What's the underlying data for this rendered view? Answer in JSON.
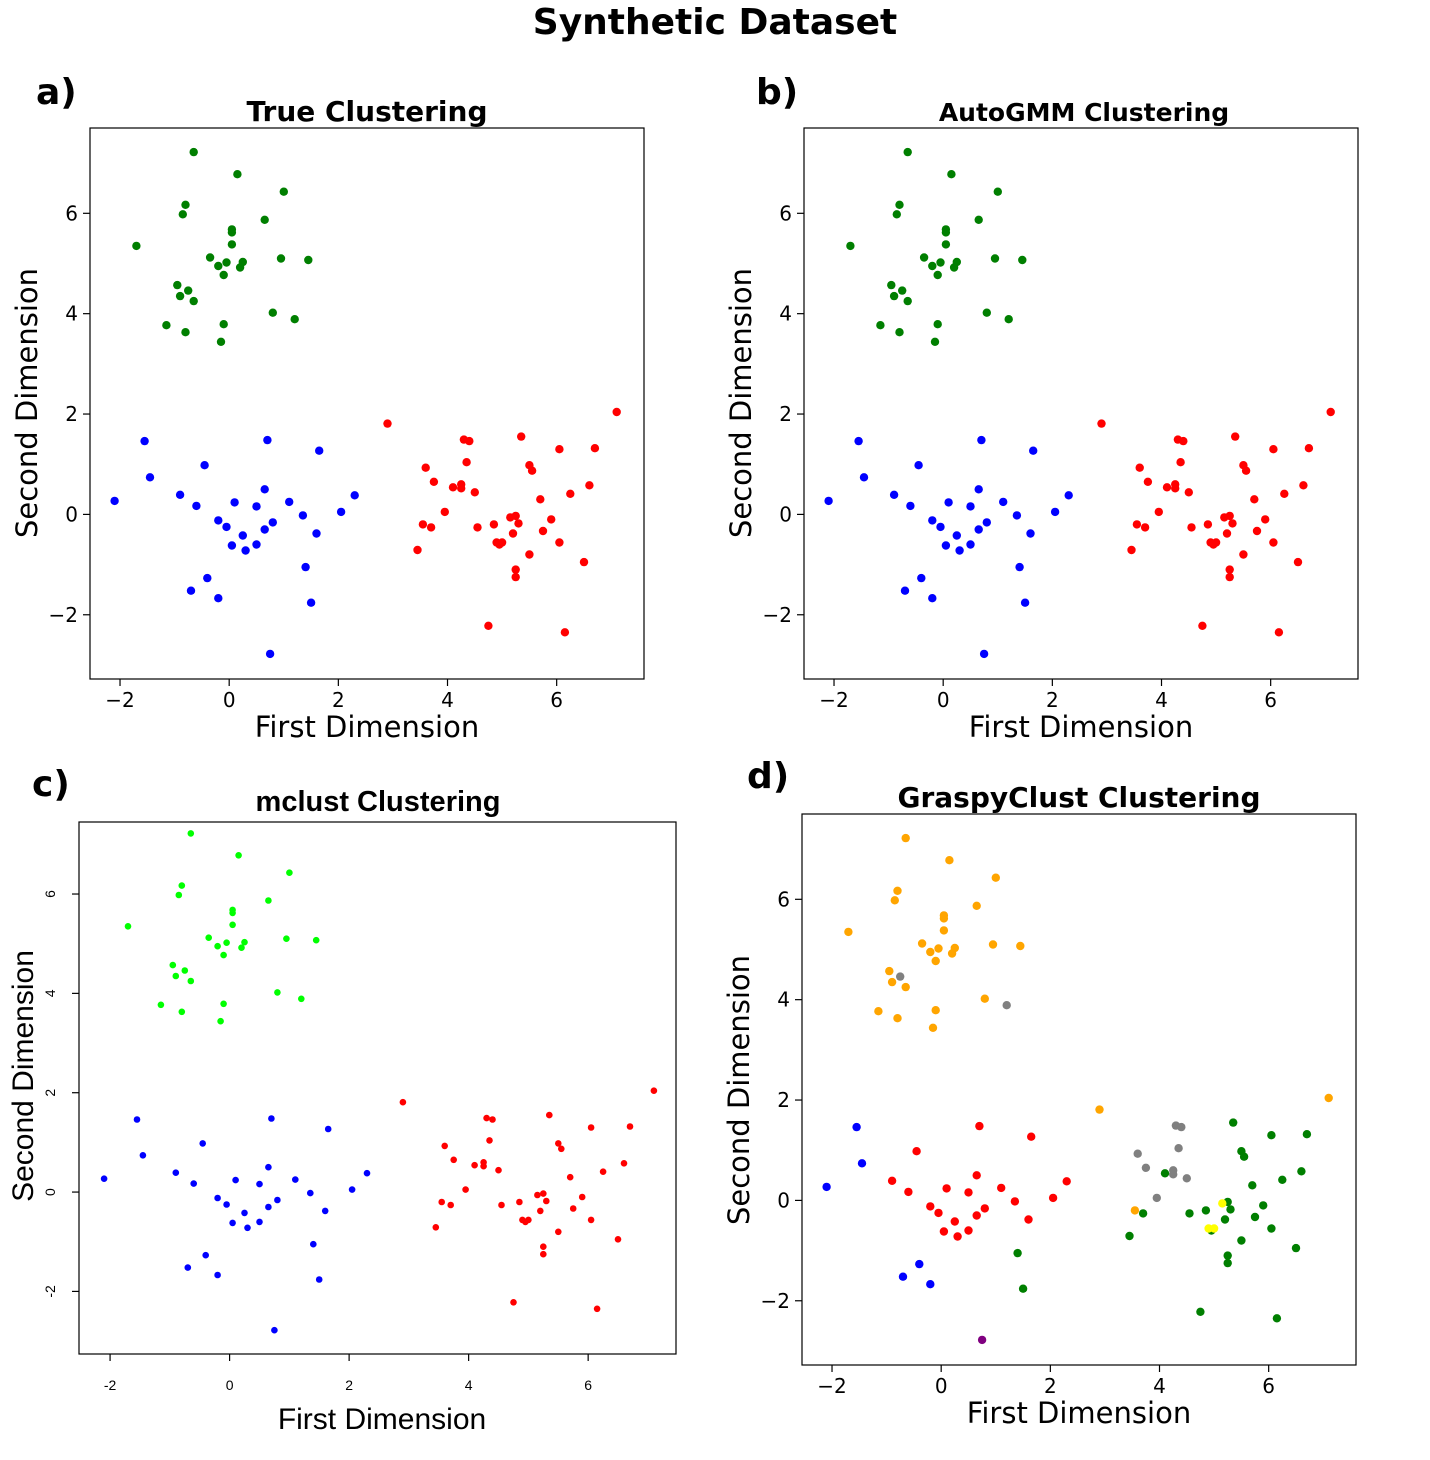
{
  "figure_title": "Synthetic Dataset",
  "colors": {
    "green": "#007f00",
    "blue": "#0000ff",
    "red": "#ff0000",
    "lime": "#00ff00",
    "orange": "#ffa500",
    "gray": "#808080",
    "yellow": "#ffff00",
    "purple": "#800080"
  },
  "chart_data": [
    {
      "type": "scatter",
      "panel_label": "a)",
      "title": "True Clustering",
      "xlabel": "First Dimension",
      "ylabel": "Second Dimension",
      "xlim": [
        -2.55,
        7.6
      ],
      "ylim": [
        -3.28,
        7.7
      ],
      "xticks": [
        -2,
        0,
        2,
        4,
        6
      ],
      "yticks": [
        -2,
        0,
        2,
        4,
        6
      ],
      "xtick_labels": [
        "−2",
        "0",
        "2",
        "4",
        "6"
      ],
      "ytick_labels": [
        "−2",
        "0",
        "2",
        "4",
        "6"
      ],
      "labels": [
        "green",
        "blue",
        "red"
      ]
    },
    {
      "type": "scatter",
      "panel_label": "b)",
      "title": "AutoGMM Clustering",
      "xlabel": "First Dimension",
      "ylabel": "Second Dimension",
      "xlim": [
        -2.55,
        7.6
      ],
      "ylim": [
        -3.28,
        7.7
      ],
      "xticks": [
        -2,
        0,
        2,
        4,
        6
      ],
      "yticks": [
        -2,
        0,
        2,
        4,
        6
      ],
      "xtick_labels": [
        "−2",
        "0",
        "2",
        "4",
        "6"
      ],
      "ytick_labels": [
        "−2",
        "0",
        "2",
        "4",
        "6"
      ],
      "labels": [
        "green",
        "blue",
        "red"
      ]
    },
    {
      "type": "scatter",
      "panel_label": "c)",
      "title": "mclust Clustering",
      "xlabel": "First Dimension",
      "ylabel": "Second Dimension",
      "xlim": [
        -2.52,
        7.47
      ],
      "ylim": [
        -3.26,
        7.45
      ],
      "xticks": [
        -2,
        0,
        2,
        4,
        6
      ],
      "yticks": [
        -2,
        0,
        2,
        4,
        6
      ],
      "xtick_labels": [
        "-2",
        "0",
        "2",
        "4",
        "6"
      ],
      "ytick_labels": [
        "-2",
        "0",
        "2",
        "4",
        "6"
      ],
      "labels": [
        "lime",
        "blue",
        "red"
      ]
    },
    {
      "type": "scatter",
      "panel_label": "d)",
      "title": "GraspyClust Clustering",
      "xlabel": "First Dimension",
      "ylabel": "Second Dimension",
      "xlim": [
        -2.55,
        7.6
      ],
      "ylim": [
        -3.28,
        7.7
      ],
      "xticks": [
        -2,
        0,
        2,
        4,
        6
      ],
      "yticks": [
        -2,
        0,
        2,
        4,
        6
      ],
      "xtick_labels": [
        "−2",
        "0",
        "2",
        "4",
        "6"
      ],
      "ytick_labels": [
        "−2",
        "0",
        "2",
        "4",
        "6"
      ],
      "groups": [
        {
          "color": "orange",
          "indices": [
            0,
            1,
            2,
            3,
            4,
            5,
            6,
            7,
            8,
            9,
            10,
            11,
            12,
            13,
            14,
            15,
            16,
            17,
            18,
            20,
            21,
            22,
            24,
            25,
            26,
            27,
            28,
            29,
            80
          ]
        },
        {
          "color": "gray",
          "indices": [
            19,
            23,
            53,
            54,
            55,
            56,
            57,
            58,
            59,
            60,
            61
          ]
        },
        {
          "color": "red",
          "indices": [
            30,
            34,
            35,
            36,
            37,
            38,
            39,
            40,
            41,
            42,
            43,
            44,
            45,
            46,
            47,
            48,
            49,
            50,
            51,
            52,
            62
          ]
        },
        {
          "color": "blue",
          "indices": [
            31,
            32,
            33,
            63,
            64,
            65
          ]
        },
        {
          "color": "purple",
          "indices": [
            66
          ]
        },
        {
          "color": "green",
          "indices": [
            67,
            68,
            69,
            70,
            71,
            72,
            73,
            74,
            75,
            76,
            77,
            78,
            79,
            81,
            82,
            83,
            84,
            85,
            86,
            87,
            88,
            89,
            90,
            91,
            92,
            93,
            94,
            95
          ]
        },
        {
          "color": "yellow",
          "indices": [
            96,
            97,
            98
          ]
        }
      ]
    }
  ],
  "points": [
    [
      -0.65,
      7.22
    ],
    [
      0.15,
      6.78
    ],
    [
      1.0,
      6.43
    ],
    [
      -0.8,
      6.17
    ],
    [
      -0.85,
      5.98
    ],
    [
      0.65,
      5.87
    ],
    [
      0.05,
      5.68
    ],
    [
      0.05,
      5.62
    ],
    [
      -1.7,
      5.35
    ],
    [
      0.05,
      5.38
    ],
    [
      -0.35,
      5.12
    ],
    [
      0.95,
      5.1
    ],
    [
      1.45,
      5.07
    ],
    [
      0.25,
      5.03
    ],
    [
      -0.05,
      5.02
    ],
    [
      -0.2,
      4.95
    ],
    [
      0.2,
      4.92
    ],
    [
      -0.1,
      4.77
    ],
    [
      -0.95,
      4.57
    ],
    [
      -0.75,
      4.46
    ],
    [
      -0.9,
      4.35
    ],
    [
      -0.65,
      4.25
    ],
    [
      0.8,
      4.02
    ],
    [
      1.2,
      3.89
    ],
    [
      -1.15,
      3.77
    ],
    [
      -0.1,
      3.79
    ],
    [
      -0.8,
      3.63
    ],
    [
      -0.15,
      3.44
    ],
    [
      2.9,
      1.81
    ],
    [
      7.1,
      2.04
    ],
    [
      0.7,
      1.48
    ],
    [
      -1.55,
      1.46
    ],
    [
      -1.45,
      0.74
    ],
    [
      -2.1,
      0.27
    ],
    [
      1.65,
      1.27
    ],
    [
      -0.45,
      0.98
    ],
    [
      0.65,
      0.5
    ],
    [
      -0.9,
      0.39
    ],
    [
      2.3,
      0.38
    ],
    [
      -0.6,
      0.17
    ],
    [
      0.1,
      0.24
    ],
    [
      1.1,
      0.25
    ],
    [
      0.5,
      0.16
    ],
    [
      2.05,
      0.05
    ],
    [
      -0.2,
      -0.12
    ],
    [
      0.8,
      -0.16
    ],
    [
      -0.05,
      -0.25
    ],
    [
      1.35,
      -0.02
    ],
    [
      0.65,
      -0.3
    ],
    [
      1.6,
      -0.38
    ],
    [
      0.25,
      -0.42
    ],
    [
      0.05,
      -0.62
    ],
    [
      0.5,
      -0.6
    ],
    [
      3.6,
      0.93
    ],
    [
      4.3,
      1.49
    ],
    [
      4.4,
      1.46
    ],
    [
      4.35,
      1.04
    ],
    [
      3.75,
      0.65
    ],
    [
      4.25,
      0.6
    ],
    [
      4.25,
      0.52
    ],
    [
      4.5,
      0.44
    ],
    [
      3.95,
      0.05
    ],
    [
      0.3,
      -0.72
    ],
    [
      -0.4,
      -1.27
    ],
    [
      -0.7,
      -1.52
    ],
    [
      -0.2,
      -1.67
    ],
    [
      0.75,
      -2.78
    ],
    [
      5.35,
      1.55
    ],
    [
      6.7,
      1.32
    ],
    [
      6.05,
      1.3
    ],
    [
      5.5,
      0.98
    ],
    [
      5.55,
      0.87
    ],
    [
      6.6,
      0.58
    ],
    [
      5.7,
      0.3
    ],
    [
      6.25,
      0.41
    ],
    [
      4.1,
      0.54
    ],
    [
      5.25,
      -0.03
    ],
    [
      5.9,
      -0.1
    ],
    [
      4.85,
      -0.2
    ],
    [
      5.3,
      -0.18
    ],
    [
      3.55,
      -0.2
    ],
    [
      3.7,
      -0.26
    ],
    [
      4.55,
      -0.26
    ],
    [
      5.2,
      -0.38
    ],
    [
      5.75,
      -0.33
    ],
    [
      4.95,
      -0.6
    ],
    [
      6.05,
      -0.56
    ],
    [
      3.45,
      -0.71
    ],
    [
      5.5,
      -0.8
    ],
    [
      6.5,
      -0.95
    ],
    [
      5.25,
      -1.1
    ],
    [
      5.25,
      -1.25
    ],
    [
      4.75,
      -2.22
    ],
    [
      6.15,
      -2.35
    ],
    [
      1.4,
      -1.05
    ],
    [
      1.5,
      -1.76
    ],
    [
      4.9,
      -0.56
    ],
    [
      5.15,
      -0.06
    ],
    [
      5.0,
      -0.56
    ]
  ],
  "base_groups": [
    {
      "cluster": 0,
      "range": [
        0,
        28
      ]
    },
    {
      "cluster": 2,
      "range": [
        28,
        30
      ]
    },
    {
      "cluster": 1,
      "range": [
        30,
        53
      ]
    },
    {
      "cluster": 2,
      "range": [
        53,
        62
      ]
    },
    {
      "cluster": 1,
      "range": [
        62,
        67
      ]
    },
    {
      "cluster": 2,
      "range": [
        67,
        94
      ]
    },
    {
      "cluster": 1,
      "range": [
        94,
        96
      ]
    },
    {
      "cluster": 2,
      "range": [
        96,
        99
      ]
    }
  ]
}
